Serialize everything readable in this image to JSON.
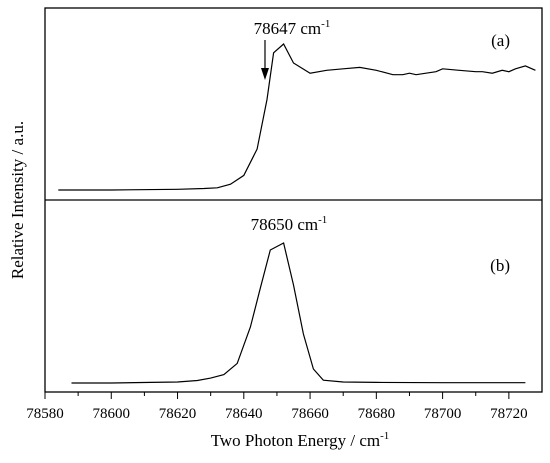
{
  "chart_data": {
    "type": "line",
    "xlabel": "Two Photon Energy / cm",
    "xlabel_sup": "-1",
    "ylabel": "Relative Intensity / a.u.",
    "xlim": [
      78580,
      78730
    ],
    "x_ticks": [
      78580,
      78600,
      78620,
      78640,
      78660,
      78680,
      78700,
      78720
    ],
    "x_tick_labels": [
      "78580",
      "78600",
      "78620",
      "78640",
      "78660",
      "78680",
      "78700",
      "78720"
    ],
    "grid": false,
    "panels": [
      {
        "label": "(a)",
        "annotation": {
          "text": "78647 cm",
          "sup": "-1",
          "x": 78647,
          "arrow": true
        },
        "ylim": [
          0,
          1.12
        ],
        "series": [
          {
            "x": [
              78584,
              78600,
              78620,
              78628,
              78632,
              78636,
              78640,
              78644,
              78647,
              78649,
              78652,
              78655,
              78660,
              78665,
              78670,
              78675,
              78680,
              78685,
              78688,
              78690,
              78692,
              78695,
              78698,
              78700,
              78705,
              78710,
              78712,
              78715,
              78718,
              78720,
              78722,
              78725,
              78728
            ],
            "y": [
              0.0,
              0.0,
              0.005,
              0.01,
              0.015,
              0.04,
              0.1,
              0.28,
              0.62,
              0.94,
              1.0,
              0.87,
              0.8,
              0.82,
              0.83,
              0.84,
              0.82,
              0.79,
              0.79,
              0.8,
              0.79,
              0.8,
              0.81,
              0.83,
              0.82,
              0.81,
              0.81,
              0.8,
              0.82,
              0.81,
              0.83,
              0.85,
              0.82
            ]
          }
        ]
      },
      {
        "label": "(b)",
        "annotation": {
          "text": "78650 cm",
          "sup": "-1",
          "x": 78650,
          "arrow": false
        },
        "ylim": [
          0,
          1.2
        ],
        "series": [
          {
            "x": [
              78588,
              78600,
              78612,
              78620,
              78626,
              78630,
              78634,
              78638,
              78642,
              78645,
              78648,
              78652,
              78655,
              78658,
              78661,
              78664,
              78670,
              78680,
              78700,
              78720,
              78725
            ],
            "y": [
              0.0,
              0.0,
              0.004,
              0.007,
              0.018,
              0.035,
              0.06,
              0.14,
              0.4,
              0.68,
              0.95,
              1.0,
              0.7,
              0.35,
              0.1,
              0.02,
              0.007,
              0.004,
              0.002,
              0.002,
              0.002
            ]
          }
        ]
      }
    ]
  }
}
